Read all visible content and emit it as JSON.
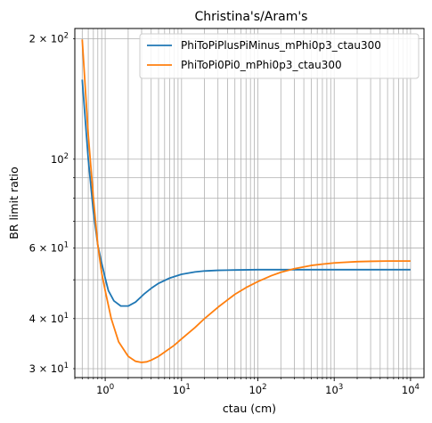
{
  "chart_data": {
    "type": "line",
    "title": "Christina's/Aram's",
    "xlabel": "ctau (cm)",
    "ylabel": "BR limit ratio",
    "xscale": "log",
    "yscale": "log",
    "xlim": [
      0.4,
      15000
    ],
    "ylim": [
      28.5,
      212
    ],
    "grid": true,
    "legend_position": "top-right",
    "x_ticks": [
      {
        "value": 1,
        "base": "10",
        "exp": "0"
      },
      {
        "value": 10,
        "base": "10",
        "exp": "1"
      },
      {
        "value": 100,
        "base": "10",
        "exp": "2"
      },
      {
        "value": 1000,
        "base": "10",
        "exp": "3"
      },
      {
        "value": 10000,
        "base": "10",
        "exp": "4"
      }
    ],
    "y_ticks": [
      {
        "value": 30,
        "mant": "3 × 10",
        "exp": "1"
      },
      {
        "value": 40,
        "mant": "4 × 10",
        "exp": "1"
      },
      {
        "value": 60,
        "mant": "6 × 10",
        "exp": "1"
      },
      {
        "value": 100,
        "mant": "10",
        "exp": "2"
      },
      {
        "value": 200,
        "mant": "2 × 10",
        "exp": "2"
      }
    ],
    "series": [
      {
        "name": "PhiToPiPlusPiMinus_mPhi0p3_ctau300",
        "color": "#1f77b4",
        "x": [
          0.5,
          0.6,
          0.7,
          0.8,
          0.9,
          1.0,
          1.1,
          1.3,
          1.6,
          2.0,
          2.5,
          3.2,
          4,
          5,
          7,
          10,
          15,
          20,
          30,
          50,
          100,
          200,
          300,
          500,
          1000,
          3000,
          10000
        ],
        "y": [
          158,
          100,
          74,
          61,
          55,
          50.5,
          47,
          44.3,
          43,
          43,
          44,
          46,
          47.6,
          49,
          50.5,
          51.6,
          52.3,
          52.6,
          52.8,
          52.9,
          53,
          53,
          53,
          53,
          53,
          53,
          53
        ]
      },
      {
        "name": "PhiToPi0Pi0_mPhi0p3_ctau300",
        "color": "#ff7f0e",
        "x": [
          0.5,
          0.6,
          0.7,
          0.8,
          0.9,
          1.0,
          1.2,
          1.5,
          2.0,
          2.5,
          3.0,
          3.5,
          4.0,
          5.0,
          6.0,
          8.0,
          10,
          15,
          20,
          30,
          50,
          70,
          100,
          150,
          200,
          300,
          500,
          700,
          1000,
          2000,
          3000,
          5000,
          10000
        ],
        "y": [
          199,
          115,
          80,
          61,
          52,
          47,
          40,
          35,
          32.2,
          31.3,
          31.1,
          31.2,
          31.5,
          32.2,
          33,
          34.3,
          35.6,
          38,
          40,
          42.7,
          46,
          47.8,
          49.5,
          51.2,
          52.2,
          53.3,
          54.3,
          54.7,
          55.1,
          55.5,
          55.6,
          55.7,
          55.7
        ]
      }
    ]
  }
}
